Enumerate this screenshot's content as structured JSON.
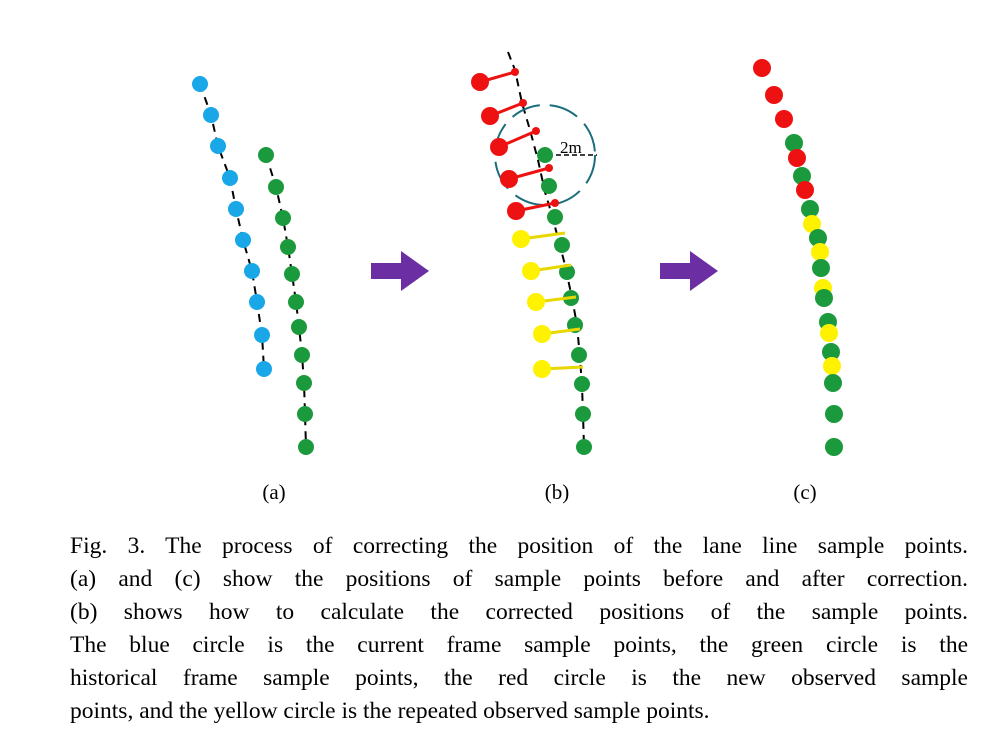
{
  "figure": {
    "panels": [
      {
        "id": "a",
        "label": "(a)"
      },
      {
        "id": "b",
        "label": "(b)"
      },
      {
        "id": "c",
        "label": "(c)"
      }
    ],
    "radius_label": "2m",
    "colors": {
      "current": "#1aa7e8",
      "historical": "#1a9a3c",
      "new": "#ee1111",
      "repeated": "#fff200",
      "arrow": "#6b2fa3",
      "circle": "#1a6d7a"
    }
  },
  "caption": {
    "lines": [
      "Fig. 3. The process of correcting the position of the lane line sample points.",
      "(a) and (c) show the positions of sample points before and after correction.",
      "(b) shows how to calculate the corrected positions of the sample points.",
      "The blue circle is the current frame sample points, the green circle is the",
      "historical frame sample points, the red circle is the new observed sample",
      "points, and the yellow circle is the repeated observed sample points."
    ]
  }
}
